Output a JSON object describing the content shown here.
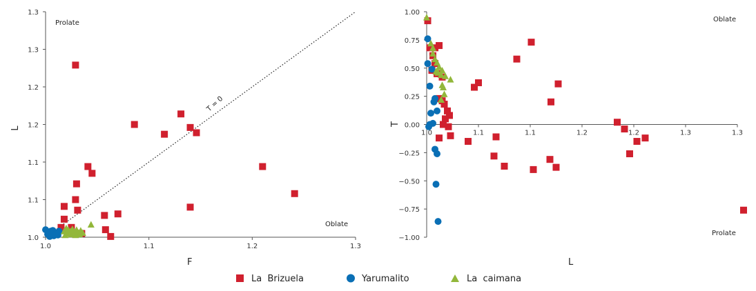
{
  "colors": {
    "brizuela": "#d0202e",
    "yarumalito": "#0a6fb5",
    "caimana": "#92b73a"
  },
  "chart_data": [
    {
      "type": "scatter",
      "xlabel": "F",
      "ylabel": "L",
      "xlim": [
        1.0,
        1.3
      ],
      "ylim": [
        1.0,
        1.3
      ],
      "xticks": [
        1.0,
        1.1,
        1.2,
        1.3
      ],
      "xtick_labels": [
        "1.0",
        "1.1",
        "1.2",
        "1.3"
      ],
      "yticks": [
        1.0,
        1.05,
        1.1,
        1.15,
        1.2,
        1.25,
        1.3
      ],
      "ytick_labels": [
        "1.0",
        "1.1",
        "1.1",
        "1.2",
        "1.2",
        "1.3",
        "1.3"
      ],
      "annotations": {
        "top_left": "Prolate",
        "bottom_right": "Oblate",
        "line_label": "T = 0"
      },
      "reference_line": {
        "from": [
          1.0,
          1.0
        ],
        "to": [
          1.3,
          1.3
        ],
        "style": "dotted"
      },
      "series": [
        {
          "name": "La Brizuela",
          "marker": "square",
          "colorKey": "brizuela",
          "points": [
            [
              1.029,
              1.229
            ],
            [
              1.086,
              1.15
            ],
            [
              1.115,
              1.137
            ],
            [
              1.131,
              1.164
            ],
            [
              1.14,
              1.146
            ],
            [
              1.146,
              1.139
            ],
            [
              1.041,
              1.094
            ],
            [
              1.045,
              1.085
            ],
            [
              1.03,
              1.071
            ],
            [
              1.14,
              1.04
            ],
            [
              1.21,
              1.094
            ],
            [
              1.241,
              1.058
            ],
            [
              1.018,
              1.041
            ],
            [
              1.029,
              1.05
            ],
            [
              1.031,
              1.036
            ],
            [
              1.018,
              1.024
            ],
            [
              1.07,
              1.031
            ],
            [
              1.057,
              1.029
            ],
            [
              1.058,
              1.01
            ],
            [
              1.063,
              1.001
            ],
            [
              1.015,
              1.013
            ],
            [
              1.025,
              1.013
            ],
            [
              1.035,
              1.005
            ]
          ]
        },
        {
          "name": "Yarumalito",
          "marker": "circle",
          "colorKey": "yarumalito",
          "points": [
            [
              1.0,
              1.01
            ],
            [
              1.002,
              1.004
            ],
            [
              1.005,
              1.008
            ],
            [
              1.008,
              1.002
            ],
            [
              1.004,
              1.001
            ],
            [
              1.01,
              1.005
            ],
            [
              1.012,
              1.003
            ],
            [
              1.003,
              1.006
            ],
            [
              1.007,
              1.009
            ],
            [
              1.013,
              1.008
            ],
            [
              1.006,
              1.004
            ],
            [
              1.009,
              1.003
            ]
          ]
        },
        {
          "name": "La caimana",
          "marker": "triangle",
          "colorKey": "caimana",
          "points": [
            [
              1.018,
              1.008
            ],
            [
              1.02,
              1.012
            ],
            [
              1.022,
              1.01
            ],
            [
              1.024,
              1.008
            ],
            [
              1.026,
              1.011
            ],
            [
              1.028,
              1.007
            ],
            [
              1.03,
              1.01
            ],
            [
              1.032,
              1.006
            ],
            [
              1.034,
              1.009
            ],
            [
              1.021,
              1.005
            ],
            [
              1.025,
              1.004
            ],
            [
              1.029,
              1.003
            ],
            [
              1.033,
              1.004
            ],
            [
              1.044,
              1.017
            ],
            [
              1.019,
              1.003
            ],
            [
              1.036,
              1.006
            ]
          ]
        }
      ]
    },
    {
      "type": "scatter",
      "xlabel": "L",
      "ylabel": "T",
      "xlim": [
        1.0,
        1.3
      ],
      "ylim": [
        -1.0,
        1.0
      ],
      "xticks": [
        1.0,
        1.05,
        1.1,
        1.15,
        1.2,
        1.25,
        1.3
      ],
      "xtick_labels": [
        "1.0",
        "1.1",
        "1.1",
        "1.2",
        "1.2",
        "1.3",
        "1.3"
      ],
      "yticks": [
        1.0,
        0.75,
        0.5,
        0.25,
        0.0,
        -0.25,
        -0.5,
        -0.75,
        -1.0
      ],
      "ytick_labels": [
        "1.00",
        "0.75",
        "0.50",
        "0.25",
        "0.00",
        "−0.25",
        "−0.50",
        "−0.75",
        "−1.00"
      ],
      "annotations": {
        "top_right": "Oblate",
        "bottom_right": "Prolate"
      },
      "series": [
        {
          "name": "La Brizuela",
          "marker": "square",
          "colorKey": "brizuela",
          "points": [
            [
              1.001,
              0.92
            ],
            [
              1.003,
              0.68
            ],
            [
              1.008,
              0.68
            ],
            [
              1.012,
              0.7
            ],
            [
              1.006,
              0.61
            ],
            [
              1.008,
              0.54
            ],
            [
              1.005,
              0.48
            ],
            [
              1.01,
              0.45
            ],
            [
              1.015,
              0.42
            ],
            [
              1.012,
              0.23
            ],
            [
              1.015,
              0.21
            ],
            [
              1.017,
              0.18
            ],
            [
              1.02,
              0.12
            ],
            [
              1.022,
              0.08
            ],
            [
              1.018,
              0.05
            ],
            [
              1.016,
              0.0
            ],
            [
              1.021,
              -0.02
            ],
            [
              1.012,
              -0.12
            ],
            [
              1.023,
              -0.1
            ],
            [
              1.04,
              -0.15
            ],
            [
              1.046,
              0.33
            ],
            [
              1.05,
              0.37
            ],
            [
              1.067,
              -0.11
            ],
            [
              1.075,
              -0.37
            ],
            [
              1.065,
              -0.28
            ],
            [
              1.087,
              0.58
            ],
            [
              1.101,
              0.73
            ],
            [
              1.103,
              -0.4
            ],
            [
              1.119,
              -0.31
            ],
            [
              1.125,
              -0.38
            ],
            [
              1.12,
              0.2
            ],
            [
              1.127,
              0.36
            ],
            [
              1.184,
              0.02
            ],
            [
              1.191,
              -0.04
            ],
            [
              1.196,
              -0.26
            ],
            [
              1.203,
              -0.15
            ],
            [
              1.211,
              -0.12
            ],
            [
              1.306,
              -0.76
            ]
          ]
        },
        {
          "name": "Yarumalito",
          "marker": "circle",
          "colorKey": "yarumalito",
          "points": [
            [
              1.001,
              0.76
            ],
            [
              1.001,
              0.54
            ],
            [
              1.005,
              0.49
            ],
            [
              1.003,
              0.34
            ],
            [
              1.008,
              0.23
            ],
            [
              1.007,
              0.2
            ],
            [
              1.01,
              0.12
            ],
            [
              1.004,
              0.1
            ],
            [
              1.003,
              0.0
            ],
            [
              1.006,
              0.01
            ],
            [
              1.002,
              -0.02
            ],
            [
              1.008,
              -0.22
            ],
            [
              1.01,
              -0.26
            ],
            [
              1.009,
              -0.53
            ],
            [
              1.011,
              -0.86
            ]
          ]
        },
        {
          "name": "La caimana",
          "marker": "triangle",
          "colorKey": "caimana",
          "points": [
            [
              1.0,
              0.95
            ],
            [
              1.004,
              0.72
            ],
            [
              1.006,
              0.68
            ],
            [
              1.006,
              0.63
            ],
            [
              1.008,
              0.58
            ],
            [
              1.01,
              0.55
            ],
            [
              1.012,
              0.51
            ],
            [
              1.015,
              0.48
            ],
            [
              1.009,
              0.47
            ],
            [
              1.011,
              0.46
            ],
            [
              1.014,
              0.44
            ],
            [
              1.018,
              0.43
            ],
            [
              1.023,
              0.4
            ],
            [
              1.015,
              0.35
            ],
            [
              1.016,
              0.33
            ],
            [
              1.017,
              0.27
            ],
            [
              1.014,
              0.22
            ]
          ]
        }
      ]
    }
  ],
  "legend": [
    {
      "label": "La  Brizuela",
      "marker": "square",
      "colorKey": "brizuela"
    },
    {
      "label": "Yarumalito",
      "marker": "circle",
      "colorKey": "yarumalito"
    },
    {
      "label": "La  caimana",
      "marker": "triangle",
      "colorKey": "caimana"
    }
  ]
}
